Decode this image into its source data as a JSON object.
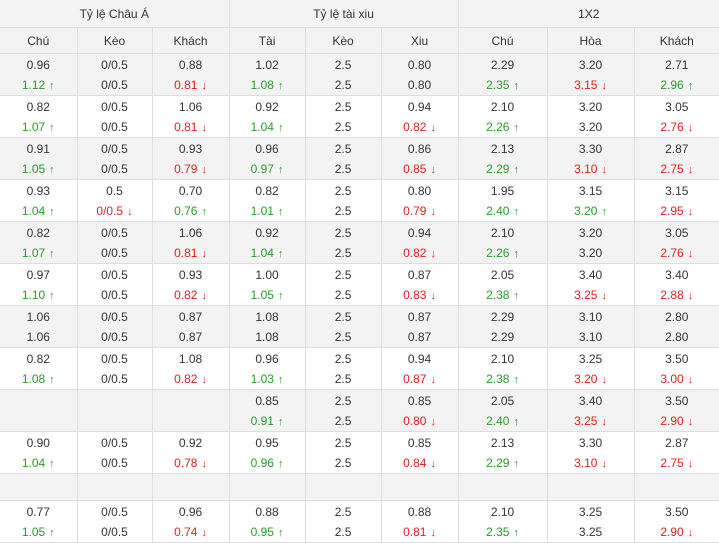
{
  "header": {
    "groups": [
      "Tỷ lệ Châu Á",
      "Tỷ lệ tài xiu",
      "1X2"
    ],
    "columns": [
      "Chú",
      "Kèo",
      "Khách",
      "Tài",
      "Kèo",
      "Xiu",
      "Chú",
      "Hòa",
      "Khách"
    ]
  },
  "colors": {
    "up": "#2a9a2a",
    "down": "#e02020",
    "shade": "#f3f3f3",
    "border": "#dddddd"
  },
  "icons": {
    "up": "arrow-up-icon",
    "down": "arrow-down-icon"
  },
  "rows": [
    {
      "open": [
        "0.96",
        "0/0.5",
        "0.88",
        "1.02",
        "2.5",
        "0.80",
        "2.29",
        "3.20",
        "2.71"
      ],
      "live": [
        [
          "1.12",
          "up"
        ],
        [
          "0/0.5",
          ""
        ],
        [
          "0.81",
          "down"
        ],
        [
          "1.08",
          "up"
        ],
        [
          "2.5",
          ""
        ],
        [
          "0.80",
          ""
        ],
        [
          "2.35",
          "up"
        ],
        [
          "3.15",
          "down"
        ],
        [
          "2.96",
          "up"
        ]
      ]
    },
    {
      "open": [
        "0.82",
        "0/0.5",
        "1.06",
        "0.92",
        "2.5",
        "0.94",
        "2.10",
        "3.20",
        "3.05"
      ],
      "live": [
        [
          "1.07",
          "up"
        ],
        [
          "0/0.5",
          ""
        ],
        [
          "0.81",
          "down"
        ],
        [
          "1.04",
          "up"
        ],
        [
          "2.5",
          ""
        ],
        [
          "0.82",
          "down"
        ],
        [
          "2.26",
          "up"
        ],
        [
          "3.20",
          ""
        ],
        [
          "2.76",
          "down"
        ]
      ]
    },
    {
      "open": [
        "0.91",
        "0/0.5",
        "0.93",
        "0.96",
        "2.5",
        "0.86",
        "2.13",
        "3.30",
        "2.87"
      ],
      "live": [
        [
          "1.05",
          "up"
        ],
        [
          "0/0.5",
          ""
        ],
        [
          "0.79",
          "down"
        ],
        [
          "0.97",
          "up"
        ],
        [
          "2.5",
          ""
        ],
        [
          "0.85",
          "down"
        ],
        [
          "2.29",
          "up"
        ],
        [
          "3.10",
          "down"
        ],
        [
          "2.75",
          "down"
        ]
      ]
    },
    {
      "open": [
        "0.93",
        "0.5",
        "0.70",
        "0.82",
        "2.5",
        "0.80",
        "1.95",
        "3.15",
        "3.15"
      ],
      "live": [
        [
          "1.04",
          "up"
        ],
        [
          "0/0.5",
          "down"
        ],
        [
          "0.76",
          "up"
        ],
        [
          "1.01",
          "up"
        ],
        [
          "2.5",
          ""
        ],
        [
          "0.79",
          "down"
        ],
        [
          "2.40",
          "up"
        ],
        [
          "3.20",
          "up"
        ],
        [
          "2.95",
          "down"
        ]
      ]
    },
    {
      "open": [
        "0.82",
        "0/0.5",
        "1.06",
        "0.92",
        "2.5",
        "0.94",
        "2.10",
        "3.20",
        "3.05"
      ],
      "live": [
        [
          "1.07",
          "up"
        ],
        [
          "0/0.5",
          ""
        ],
        [
          "0.81",
          "down"
        ],
        [
          "1.04",
          "up"
        ],
        [
          "2.5",
          ""
        ],
        [
          "0.82",
          "down"
        ],
        [
          "2.26",
          "up"
        ],
        [
          "3.20",
          ""
        ],
        [
          "2.76",
          "down"
        ]
      ]
    },
    {
      "open": [
        "0.97",
        "0/0.5",
        "0.93",
        "1.00",
        "2.5",
        "0.87",
        "2.05",
        "3.40",
        "3.40"
      ],
      "live": [
        [
          "1.10",
          "up"
        ],
        [
          "0/0.5",
          ""
        ],
        [
          "0.82",
          "down"
        ],
        [
          "1.05",
          "up"
        ],
        [
          "2.5",
          ""
        ],
        [
          "0.83",
          "down"
        ],
        [
          "2.38",
          "up"
        ],
        [
          "3.25",
          "down"
        ],
        [
          "2.88",
          "down"
        ]
      ]
    },
    {
      "open": [
        "1.06",
        "0/0.5",
        "0.87",
        "1.08",
        "2.5",
        "0.87",
        "2.29",
        "3.10",
        "2.80"
      ],
      "live": [
        [
          "1.06",
          ""
        ],
        [
          "0/0.5",
          ""
        ],
        [
          "0.87",
          ""
        ],
        [
          "1.08",
          ""
        ],
        [
          "2.5",
          ""
        ],
        [
          "0.87",
          ""
        ],
        [
          "2.29",
          ""
        ],
        [
          "3.10",
          ""
        ],
        [
          "2.80",
          ""
        ]
      ]
    },
    {
      "open": [
        "0.82",
        "0/0.5",
        "1.08",
        "0.96",
        "2.5",
        "0.94",
        "2.10",
        "3.25",
        "3.50"
      ],
      "live": [
        [
          "1.08",
          "up"
        ],
        [
          "0/0.5",
          ""
        ],
        [
          "0.82",
          "down"
        ],
        [
          "1.03",
          "up"
        ],
        [
          "2.5",
          ""
        ],
        [
          "0.87",
          "down"
        ],
        [
          "2.38",
          "up"
        ],
        [
          "3.20",
          "down"
        ],
        [
          "3.00",
          "down"
        ]
      ]
    },
    {
      "open": [
        "",
        "",
        "",
        "0.85",
        "2.5",
        "0.85",
        "2.05",
        "3.40",
        "3.50"
      ],
      "live": [
        [
          "",
          ""
        ],
        [
          "",
          ""
        ],
        [
          "",
          ""
        ],
        [
          "0.91",
          "up"
        ],
        [
          "2.5",
          ""
        ],
        [
          "0.80",
          "down"
        ],
        [
          "2.40",
          "up"
        ],
        [
          "3.25",
          "down"
        ],
        [
          "2.90",
          "down"
        ]
      ]
    },
    {
      "open": [
        "0.90",
        "0/0.5",
        "0.92",
        "0.95",
        "2.5",
        "0.85",
        "2.13",
        "3.30",
        "2.87"
      ],
      "live": [
        [
          "1.04",
          "up"
        ],
        [
          "0/0.5",
          ""
        ],
        [
          "0.78",
          "down"
        ],
        [
          "0.96",
          "up"
        ],
        [
          "2.5",
          ""
        ],
        [
          "0.84",
          "down"
        ],
        [
          "2.29",
          "up"
        ],
        [
          "3.10",
          "down"
        ],
        [
          "2.75",
          "down"
        ]
      ]
    },
    {
      "gap": true
    },
    {
      "open": [
        "0.77",
        "0/0.5",
        "0.96",
        "0.88",
        "2.5",
        "0.88",
        "2.10",
        "3.25",
        "3.50"
      ],
      "live": [
        [
          "1.05",
          "up"
        ],
        [
          "0/0.5",
          ""
        ],
        [
          "0.74",
          "down"
        ],
        [
          "0.95",
          "up"
        ],
        [
          "2.5",
          ""
        ],
        [
          "0.81",
          "down"
        ],
        [
          "2.35",
          "up"
        ],
        [
          "3.25",
          ""
        ],
        [
          "2.90",
          "down"
        ]
      ]
    }
  ]
}
